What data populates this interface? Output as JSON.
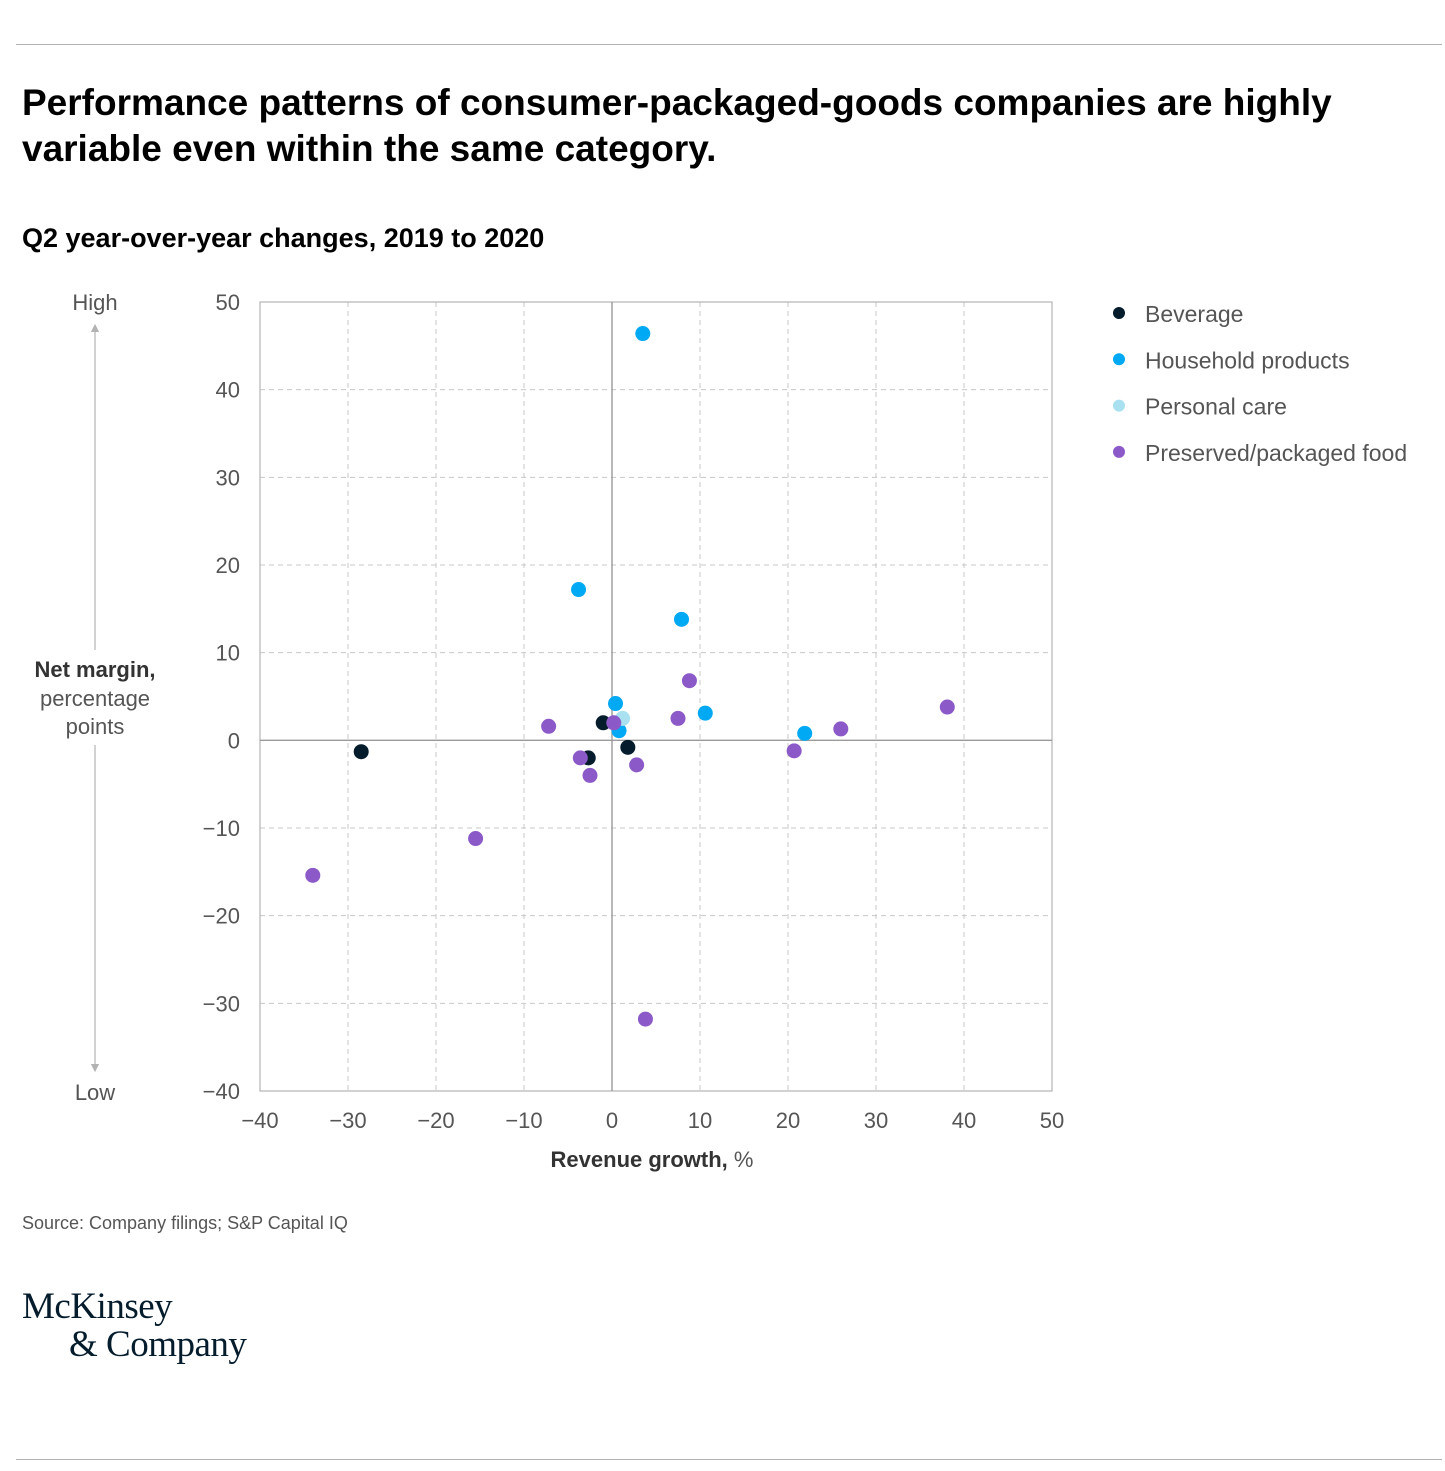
{
  "title": "Performance patterns of consumer-packaged-goods companies are highly variable even within the same category.",
  "subtitle": "Q2 year-over-year changes, 2019 to 2020",
  "source": "Source: Company filings; S&P Capital IQ",
  "logo": {
    "line1": "McKinsey",
    "line2": "& Company"
  },
  "chart_data": {
    "type": "scatter",
    "title": "",
    "xlabel_bold": "Revenue growth,",
    "xlabel_rest": " %",
    "ylabel_bold": "Net margin,",
    "ylabel_rest": [
      "percentage",
      "points"
    ],
    "y_high_label": "High",
    "y_low_label": "Low",
    "xlim": [
      -40,
      50
    ],
    "ylim": [
      -40,
      50
    ],
    "x_ticks": [
      -40,
      -30,
      -20,
      -10,
      0,
      10,
      20,
      30,
      40,
      50
    ],
    "y_ticks": [
      -40,
      -30,
      -20,
      -10,
      0,
      10,
      20,
      30,
      40,
      50
    ],
    "grid": true,
    "legend_position": "top-right",
    "series": [
      {
        "name": "Beverage",
        "color": "#051c2c",
        "points": [
          [
            -28.5,
            -1.3
          ],
          [
            -1.0,
            2.0
          ],
          [
            -2.7,
            -2.0
          ],
          [
            1.8,
            -0.8
          ]
        ]
      },
      {
        "name": "Household products",
        "color": "#00a9f4",
        "points": [
          [
            3.5,
            46.4
          ],
          [
            -3.8,
            17.2
          ],
          [
            7.9,
            13.8
          ],
          [
            0.4,
            4.2
          ],
          [
            10.6,
            3.1
          ],
          [
            0.8,
            1.1
          ],
          [
            21.9,
            0.8
          ]
        ]
      },
      {
        "name": "Personal care",
        "color": "#a9e1f0",
        "points": [
          [
            1.2,
            2.5
          ]
        ]
      },
      {
        "name": "Preserved/packaged food",
        "color": "#8c5ac8",
        "points": [
          [
            8.8,
            6.8
          ],
          [
            7.5,
            2.5
          ],
          [
            -7.2,
            1.6
          ],
          [
            0.2,
            2.0
          ],
          [
            -3.6,
            -2.0
          ],
          [
            -2.5,
            -4.0
          ],
          [
            2.8,
            -2.8
          ],
          [
            20.7,
            -1.2
          ],
          [
            26.0,
            1.3
          ],
          [
            38.1,
            3.8
          ],
          [
            -15.5,
            -11.2
          ],
          [
            -34.0,
            -15.4
          ],
          [
            3.8,
            -31.8
          ]
        ]
      }
    ]
  }
}
